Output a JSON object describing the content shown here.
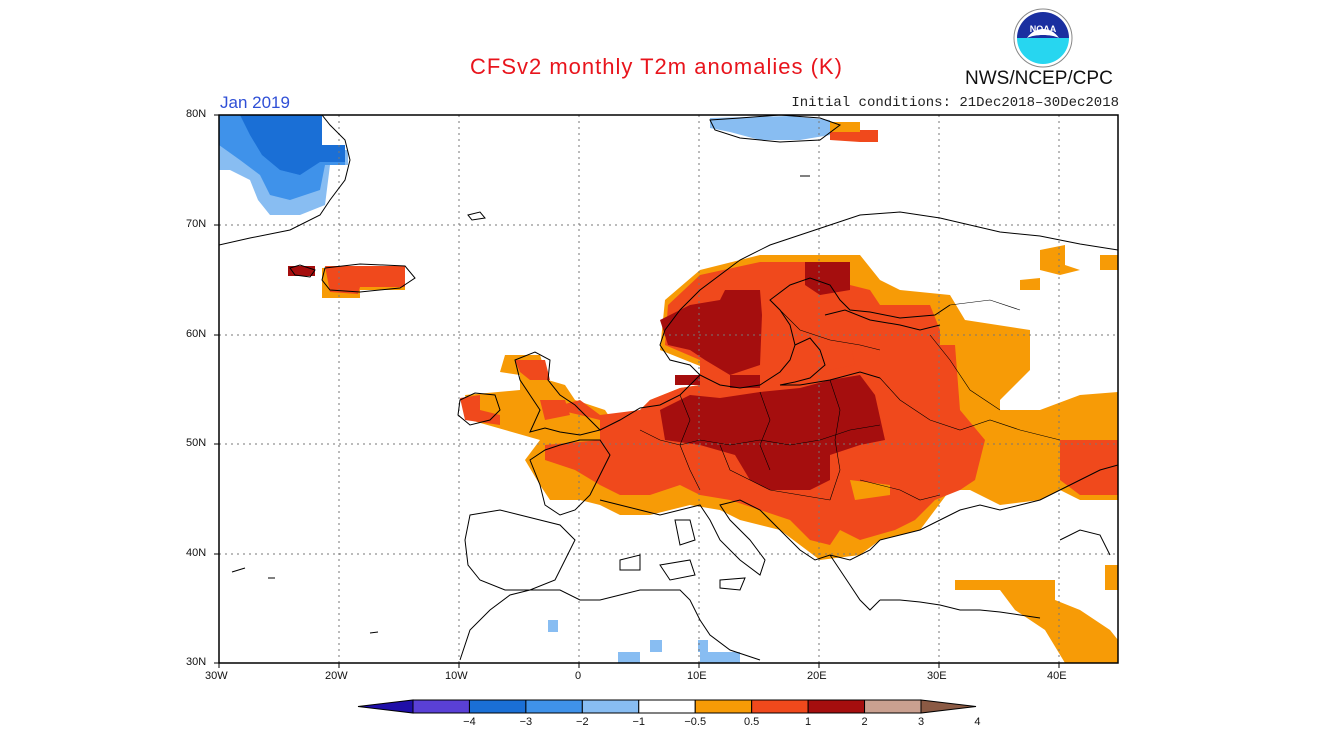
{
  "title": "CFSv2 monthly T2m anomalies (K)",
  "month": "Jan 2019",
  "initial_conditions": "Initial conditions: 21Dec2018–30Dec2018",
  "agency": "NWS/NCEP/CPC",
  "logo_text": "NOAA",
  "lat_labels": [
    "80N",
    "70N",
    "60N",
    "50N",
    "40N",
    "30N"
  ],
  "lon_labels": [
    "30W",
    "20W",
    "10W",
    "0",
    "10E",
    "20E",
    "30E",
    "40E"
  ],
  "map": {
    "lon_range": [
      -30,
      45
    ],
    "lat_range": [
      30,
      80
    ],
    "gridlines": "dotted",
    "anomaly_regions": [
      {
        "name": "Greenland east coast",
        "level": "-2 to -1",
        "color": "#1a6fd6"
      },
      {
        "name": "Svalbard",
        "level": "-1 to -0.5",
        "color": "#88bdf2"
      },
      {
        "name": "Iceland",
        "level": "1 to 2",
        "color": "#f0491c"
      },
      {
        "name": "Central Europe / Poland",
        "level": "2 to 3",
        "color": "#a50e0e"
      },
      {
        "name": "Scandinavia",
        "level": "1 to 3",
        "color": "#f0491c"
      },
      {
        "name": "Western Russia",
        "level": "0.5 to 2",
        "color": "#f79b06"
      },
      {
        "name": "Middle East",
        "level": "0.5 to 1",
        "color": "#f79b06"
      },
      {
        "name": "North Africa spots",
        "level": "-1 to -0.5",
        "color": "#88bdf2"
      }
    ]
  },
  "colorbar": {
    "ticks": [
      "−4",
      "−3",
      "−2",
      "−1",
      "−0.5",
      "0.5",
      "1",
      "2",
      "3",
      "4"
    ],
    "colors": [
      "#1f0fa8",
      "#5a40d6",
      "#1a6fd6",
      "#3f92ea",
      "#88bdf2",
      "#ffffff",
      "#f79b06",
      "#f0491c",
      "#a50e0e",
      "#caa090",
      "#8b5a44"
    ]
  }
}
